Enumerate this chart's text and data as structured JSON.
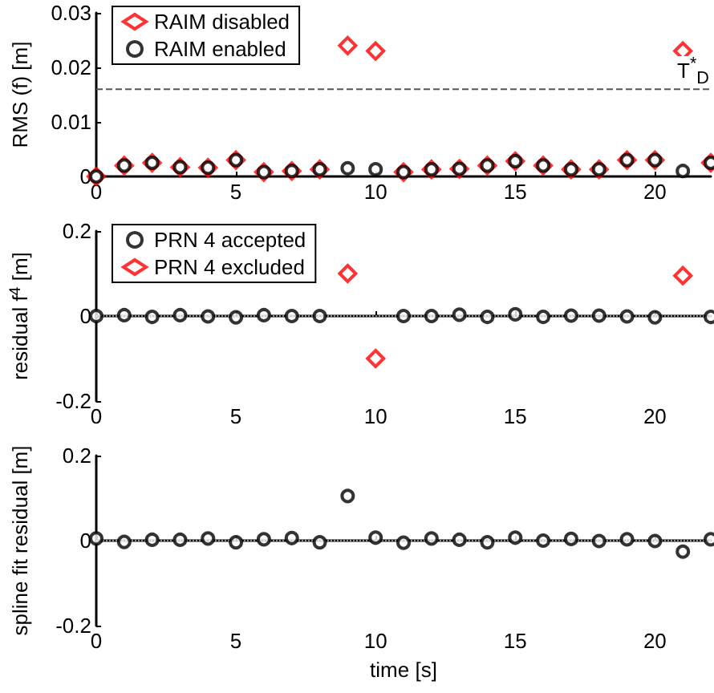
{
  "chart_data": [
    {
      "type": "scatter",
      "ylabel": "RMS (f) [m]",
      "x": [
        0,
        1,
        2,
        3,
        4,
        5,
        6,
        7,
        8,
        9,
        10,
        11,
        12,
        13,
        14,
        15,
        16,
        17,
        18,
        19,
        20,
        21,
        22
      ],
      "xlim": [
        0,
        22
      ],
      "xticks": [
        0,
        5,
        10,
        15,
        20
      ],
      "ylim": [
        0,
        0.03
      ],
      "yticks": [
        0,
        0.01,
        0.02,
        0.03
      ],
      "legend": "top left",
      "series": [
        {
          "name": "RAIM disabled",
          "color": "#ff0000",
          "marker": "diamond",
          "values": [
            0,
            0.002,
            0.0025,
            0.0017,
            0.0016,
            0.003,
            0.0008,
            0.001,
            0.0013,
            0.024,
            0.023,
            0.0008,
            0.0013,
            0.0014,
            0.002,
            0.0028,
            0.002,
            0.0013,
            0.0013,
            0.003,
            0.003,
            0.023,
            0.0025
          ]
        },
        {
          "name": "RAIM enabled",
          "color": "#000000",
          "marker": "circle",
          "values": [
            0,
            0.002,
            0.0025,
            0.0017,
            0.0016,
            0.003,
            0.0008,
            0.001,
            0.0013,
            0.0015,
            0.0013,
            0.0008,
            0.0013,
            0.0014,
            0.002,
            0.0028,
            0.002,
            0.0013,
            0.0013,
            0.003,
            0.003,
            0.001,
            0.0025
          ]
        }
      ],
      "ref_lines": [
        {
          "axis": "y",
          "value": 0.016,
          "label": "T$^{*}$$_{D}$",
          "color": "#555555",
          "line_style": "dashed"
        }
      ]
    },
    {
      "type": "scatter",
      "ylabel": "residual f$^{4}$ [m]",
      "x": [
        0,
        1,
        2,
        3,
        4,
        5,
        6,
        7,
        8,
        9,
        10,
        11,
        12,
        13,
        14,
        15,
        16,
        17,
        18,
        19,
        20,
        21,
        22
      ],
      "xlim": [
        0,
        22
      ],
      "xticks": [
        0,
        5,
        10,
        15,
        20
      ],
      "ylim": [
        -0.2,
        0.2
      ],
      "yticks": [
        -0.2,
        0,
        0.2
      ],
      "legend": "top left",
      "series": [
        {
          "name": "PRN 4 accepted",
          "color": "#000000",
          "marker": "circle",
          "values": [
            0,
            0.002,
            -0.002,
            0.002,
            -0.001,
            -0.003,
            0.002,
            0,
            0,
            null,
            null,
            0,
            0,
            0.003,
            -0.002,
            0.004,
            -0.002,
            0.001,
            0.001,
            -0.001,
            -0.003,
            null,
            -0.002
          ]
        },
        {
          "name": "PRN 4 excluded",
          "color": "#ff0000",
          "marker": "diamond",
          "values": [
            null,
            null,
            null,
            null,
            null,
            null,
            null,
            null,
            null,
            0.1,
            -0.1,
            null,
            null,
            null,
            null,
            null,
            null,
            null,
            null,
            null,
            null,
            0.095,
            null
          ]
        }
      ],
      "ref_lines": [
        {
          "axis": "y",
          "value": 0,
          "color": "#888888",
          "line_style": "dotted"
        }
      ]
    },
    {
      "type": "scatter",
      "ylabel": "spline fit residual [m]",
      "xlabel": "time [s]",
      "x": [
        0,
        1,
        2,
        3,
        4,
        5,
        6,
        7,
        8,
        9,
        10,
        11,
        12,
        13,
        14,
        15,
        16,
        17,
        18,
        19,
        20,
        21,
        22
      ],
      "xlim": [
        0,
        22
      ],
      "xticks": [
        0,
        5,
        10,
        15,
        20
      ],
      "ylim": [
        -0.2,
        0.2
      ],
      "yticks": [
        -0.2,
        0,
        0.2
      ],
      "series": [
        {
          "color": "#000000",
          "marker": "circle",
          "values": [
            0.005,
            -0.003,
            0.002,
            0.002,
            0.005,
            -0.004,
            0.003,
            0.006,
            -0.004,
            0.105,
            0.007,
            -0.005,
            0.005,
            0.002,
            -0.004,
            0.007,
            0,
            0.004,
            -0.001,
            0.003,
            -0.001,
            -0.026,
            0.003
          ]
        }
      ],
      "ref_lines": [
        {
          "axis": "y",
          "value": 0,
          "color": "#888888",
          "line_style": "dotted"
        }
      ]
    }
  ]
}
